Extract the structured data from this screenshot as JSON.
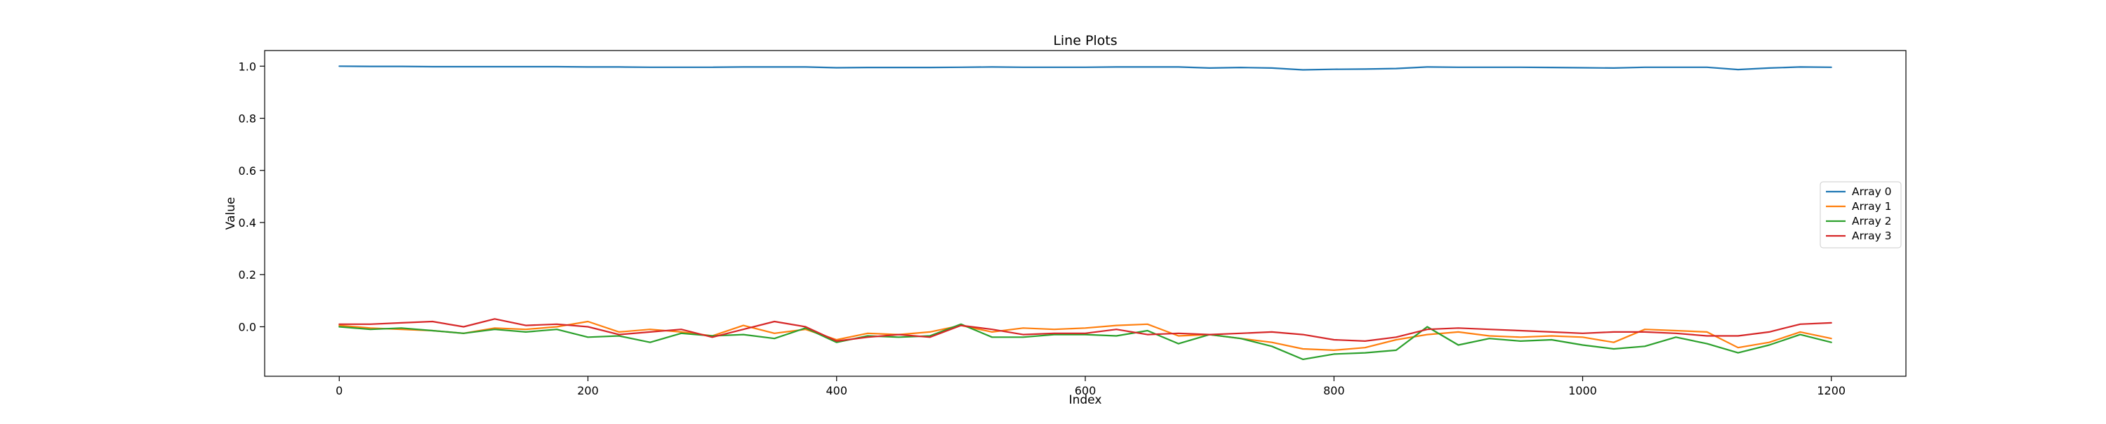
{
  "chart_data": {
    "type": "line",
    "title": "Line Plots",
    "xlabel": "Index",
    "ylabel": "Value",
    "xlim": [
      -60,
      1260
    ],
    "ylim": [
      -0.19,
      1.06
    ],
    "xticks": [
      0,
      200,
      400,
      600,
      800,
      1000,
      1200
    ],
    "xtick_labels": [
      "0",
      "200",
      "400",
      "600",
      "800",
      "1000",
      "1200"
    ],
    "yticks": [
      0.0,
      0.2,
      0.4,
      0.6,
      0.8,
      1.0
    ],
    "ytick_labels": [
      "0.0",
      "0.2",
      "0.4",
      "0.6",
      "0.8",
      "1.0"
    ],
    "grid": false,
    "legend_position": "center-right",
    "x": [
      0,
      25,
      50,
      75,
      100,
      125,
      150,
      175,
      200,
      225,
      250,
      275,
      300,
      325,
      350,
      375,
      400,
      425,
      450,
      475,
      500,
      525,
      550,
      575,
      600,
      625,
      650,
      675,
      700,
      725,
      750,
      775,
      800,
      825,
      850,
      875,
      900,
      925,
      950,
      975,
      1000,
      1025,
      1050,
      1075,
      1100,
      1125,
      1150,
      1175,
      1200
    ],
    "series": [
      {
        "name": "Array 0",
        "color": "#1f77b4",
        "values": [
          1.0,
          0.999,
          0.999,
          0.998,
          0.998,
          0.998,
          0.998,
          0.998,
          0.997,
          0.997,
          0.996,
          0.996,
          0.996,
          0.997,
          0.997,
          0.997,
          0.994,
          0.995,
          0.995,
          0.995,
          0.996,
          0.997,
          0.996,
          0.996,
          0.996,
          0.997,
          0.997,
          0.997,
          0.993,
          0.995,
          0.993,
          0.986,
          0.988,
          0.989,
          0.991,
          0.997,
          0.996,
          0.996,
          0.996,
          0.995,
          0.994,
          0.993,
          0.996,
          0.996,
          0.996,
          0.987,
          0.993,
          0.997,
          0.996
        ]
      },
      {
        "name": "Array 1",
        "color": "#ff7f0e",
        "values": [
          0.005,
          -0.005,
          -0.01,
          -0.015,
          -0.025,
          -0.005,
          -0.01,
          0.0,
          0.02,
          -0.02,
          -0.01,
          -0.02,
          -0.035,
          0.005,
          -0.025,
          -0.01,
          -0.05,
          -0.025,
          -0.03,
          -0.02,
          0.005,
          -0.02,
          -0.005,
          -0.01,
          -0.005,
          0.005,
          0.01,
          -0.035,
          -0.03,
          -0.045,
          -0.06,
          -0.085,
          -0.09,
          -0.08,
          -0.05,
          -0.03,
          -0.02,
          -0.035,
          -0.04,
          -0.035,
          -0.04,
          -0.06,
          -0.01,
          -0.015,
          -0.02,
          -0.08,
          -0.06,
          -0.02,
          -0.045
        ]
      },
      {
        "name": "Array 2",
        "color": "#2ca02c",
        "values": [
          0.0,
          -0.01,
          -0.005,
          -0.015,
          -0.025,
          -0.01,
          -0.02,
          -0.01,
          -0.04,
          -0.035,
          -0.06,
          -0.025,
          -0.035,
          -0.03,
          -0.045,
          -0.005,
          -0.06,
          -0.035,
          -0.04,
          -0.035,
          0.01,
          -0.04,
          -0.04,
          -0.03,
          -0.03,
          -0.035,
          -0.015,
          -0.065,
          -0.03,
          -0.045,
          -0.075,
          -0.125,
          -0.105,
          -0.1,
          -0.09,
          0.0,
          -0.07,
          -0.045,
          -0.055,
          -0.05,
          -0.07,
          -0.085,
          -0.075,
          -0.04,
          -0.065,
          -0.1,
          -0.07,
          -0.03,
          -0.06
        ]
      },
      {
        "name": "Array 3",
        "color": "#d62728",
        "values": [
          0.01,
          0.01,
          0.015,
          0.02,
          0.0,
          0.03,
          0.005,
          0.01,
          0.0,
          -0.03,
          -0.02,
          -0.01,
          -0.04,
          -0.01,
          0.02,
          0.0,
          -0.055,
          -0.04,
          -0.03,
          -0.04,
          0.005,
          -0.01,
          -0.03,
          -0.025,
          -0.025,
          -0.01,
          -0.03,
          -0.025,
          -0.03,
          -0.025,
          -0.02,
          -0.03,
          -0.05,
          -0.055,
          -0.04,
          -0.01,
          -0.005,
          -0.01,
          -0.015,
          -0.02,
          -0.025,
          -0.02,
          -0.02,
          -0.025,
          -0.035,
          -0.035,
          -0.02,
          0.01,
          0.015
        ]
      }
    ]
  }
}
